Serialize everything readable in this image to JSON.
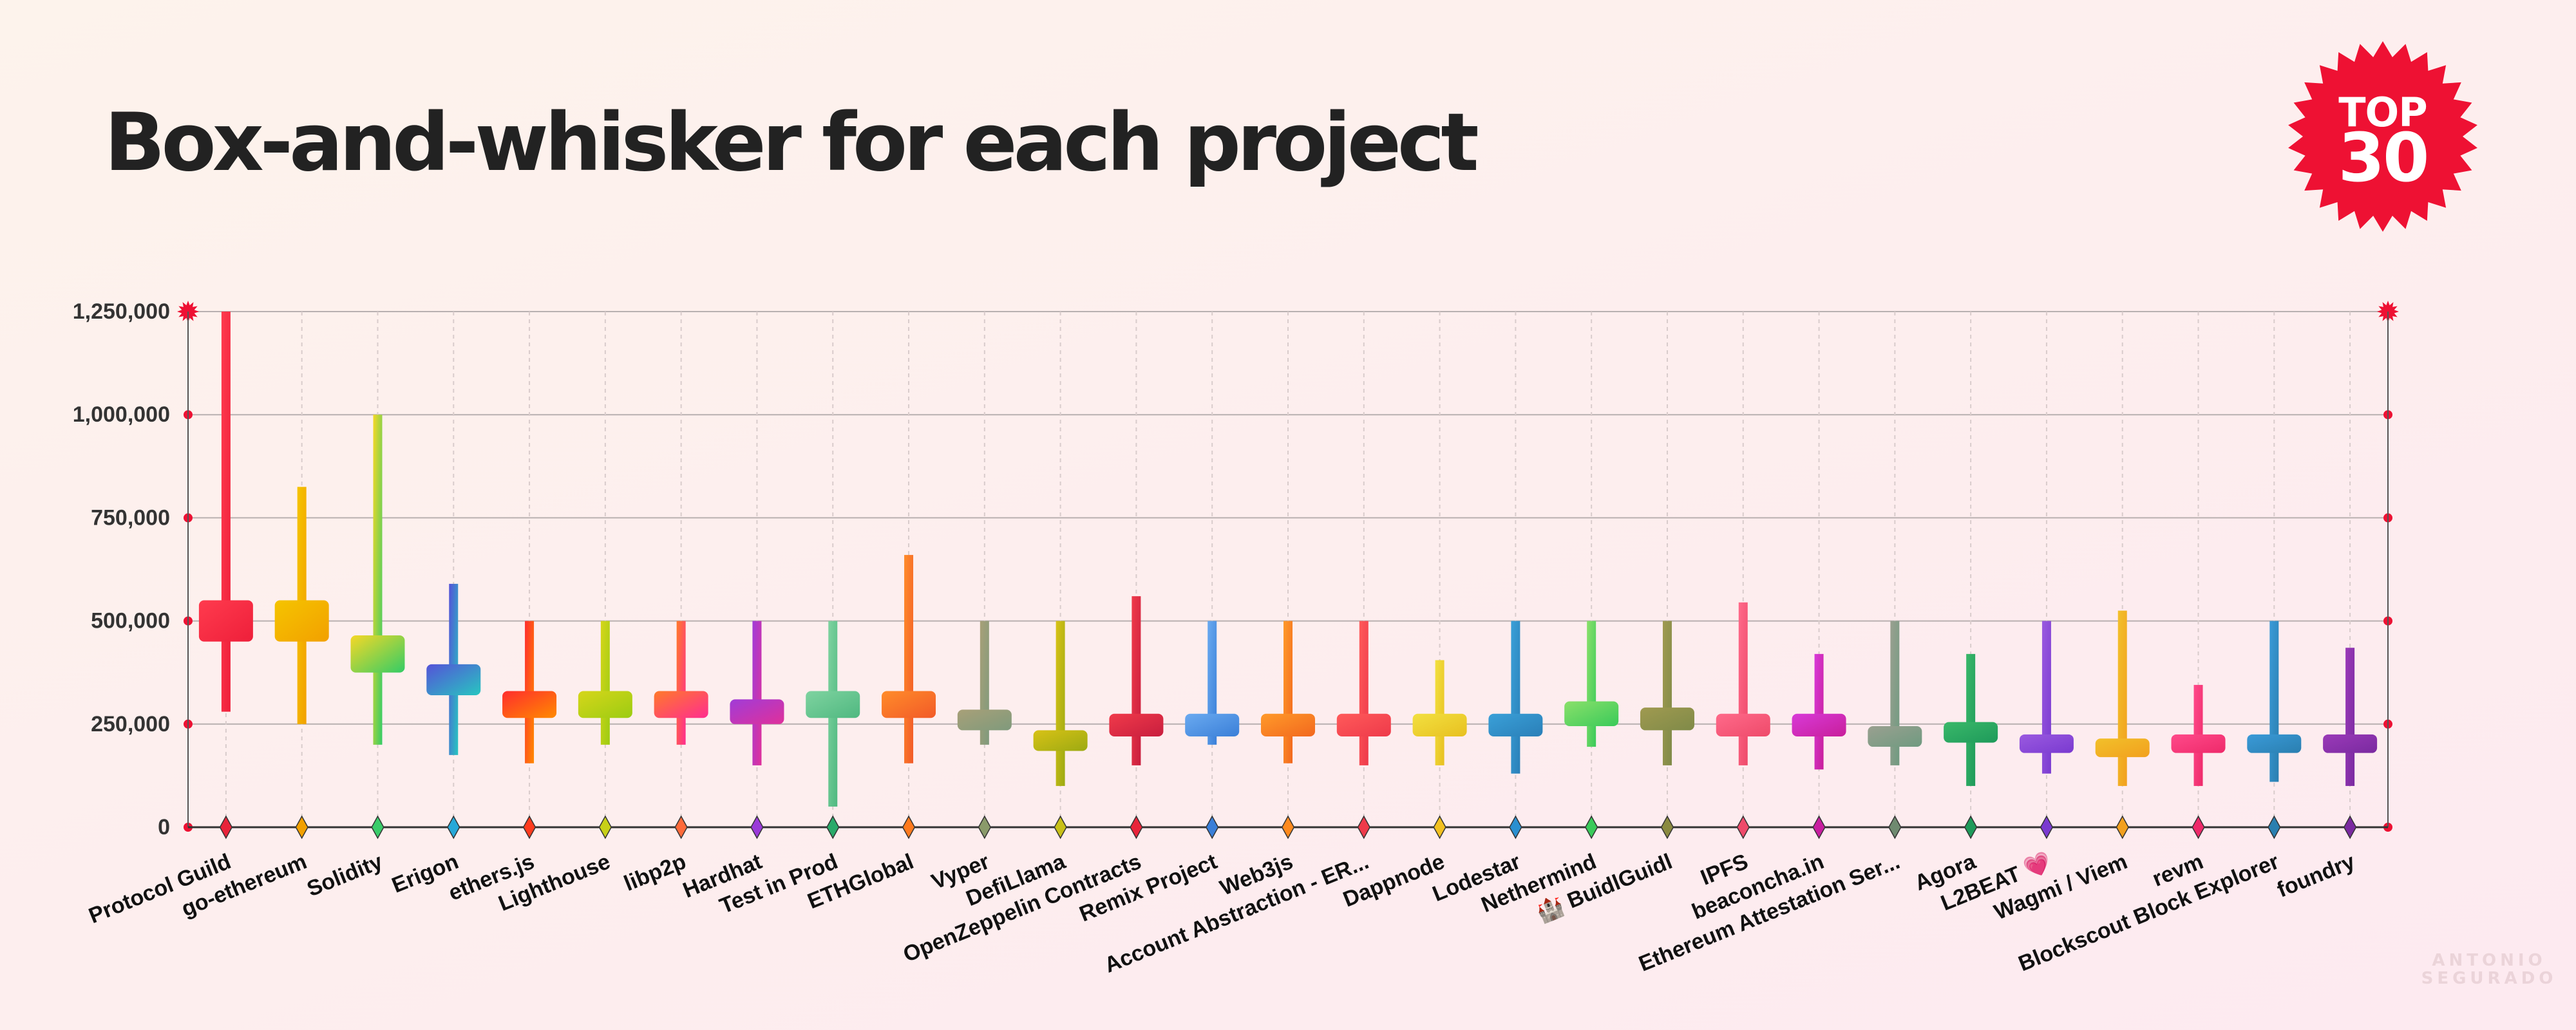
{
  "title": "Box-and-whisker for each project",
  "badge": {
    "line1": "TOP",
    "line2": "30",
    "color": "#ee1133"
  },
  "watermark": {
    "line1": "ANTONIO",
    "line2": "SEGURADO"
  },
  "chart_data": {
    "type": "box",
    "title": "Box-and-whisker for each project",
    "xlabel": "",
    "ylabel": "",
    "ylim": [
      0,
      1250000
    ],
    "yticks": [
      0,
      250000,
      500000,
      750000,
      1000000,
      1250000
    ],
    "ytick_labels": [
      "0",
      "250,000",
      "500,000",
      "750,000",
      "1,000,000",
      "1,250,000"
    ],
    "grid": true,
    "legend": "none",
    "categories": [
      "Protocol Guild",
      "go-ethereum",
      "Solidity",
      "Erigon",
      "ethers.js",
      "Lighthouse",
      "libp2p",
      "Hardhat",
      "Test in Prod",
      "ETHGlobal",
      "Vyper",
      "DefiLlama",
      "OpenZeppelin Contracts",
      "Remix Project",
      "Web3js",
      "Account Abstraction - ER...",
      "Dappnode",
      "Lodestar",
      "Nethermind",
      "🏰 BuidlGuidl",
      "IPFS",
      "beaconcha.in",
      "Ethereum Attestation Ser...",
      "Agora",
      "L2BEAT 💗",
      "Wagmi / Viem",
      "revm",
      "Blockscout Block Explorer",
      "foundry"
    ],
    "boxes": [
      {
        "min": 280000,
        "q1": 450000,
        "q3": 550000,
        "max": 1250000,
        "color1": "#ff3b4e",
        "color2": "#ee1f3a"
      },
      {
        "min": 250000,
        "q1": 450000,
        "q3": 550000,
        "max": 825000,
        "color1": "#f5c400",
        "color2": "#f2a000"
      },
      {
        "min": 200000,
        "q1": 375000,
        "q3": 465000,
        "max": 1000000,
        "color1": "#f6d826",
        "color2": "#33cc66"
      },
      {
        "min": 175000,
        "q1": 320000,
        "q3": 395000,
        "max": 590000,
        "color1": "#5552d8",
        "color2": "#27c6c0"
      },
      {
        "min": 155000,
        "q1": 265000,
        "q3": 330000,
        "max": 500000,
        "color1": "#ff2d2d",
        "color2": "#ff8a00"
      },
      {
        "min": 200000,
        "q1": 265000,
        "q3": 330000,
        "max": 500000,
        "color1": "#d6d61a",
        "color2": "#9ccc12"
      },
      {
        "min": 200000,
        "q1": 265000,
        "q3": 330000,
        "max": 500000,
        "color1": "#ff7a2a",
        "color2": "#ff2d8f"
      },
      {
        "min": 150000,
        "q1": 250000,
        "q3": 310000,
        "max": 500000,
        "color1": "#a03cd8",
        "color2": "#e0309a"
      },
      {
        "min": 50000,
        "q1": 265000,
        "q3": 330000,
        "max": 500000,
        "color1": "#7fd3a0",
        "color2": "#4fb880"
      },
      {
        "min": 155000,
        "q1": 265000,
        "q3": 330000,
        "max": 660000,
        "color1": "#ff8c2a",
        "color2": "#f25a28"
      },
      {
        "min": 200000,
        "q1": 235000,
        "q3": 285000,
        "max": 500000,
        "color1": "#a8a078",
        "color2": "#7f9a7c"
      },
      {
        "min": 100000,
        "q1": 185000,
        "q3": 235000,
        "max": 500000,
        "color1": "#d8c216",
        "color2": "#9caa12"
      },
      {
        "min": 150000,
        "q1": 220000,
        "q3": 275000,
        "max": 560000,
        "color1": "#f03a4a",
        "color2": "#c81e3e"
      },
      {
        "min": 200000,
        "q1": 220000,
        "q3": 275000,
        "max": 500000,
        "color1": "#6aaaf0",
        "color2": "#3a7fd8"
      },
      {
        "min": 155000,
        "q1": 220000,
        "q3": 275000,
        "max": 500000,
        "color1": "#ff9a2a",
        "color2": "#f2681e"
      },
      {
        "min": 150000,
        "q1": 220000,
        "q3": 275000,
        "max": 500000,
        "color1": "#ff5a5a",
        "color2": "#ee3a4a"
      },
      {
        "min": 150000,
        "q1": 220000,
        "q3": 275000,
        "max": 405000,
        "color1": "#f2e040",
        "color2": "#e8c020"
      },
      {
        "min": 130000,
        "q1": 220000,
        "q3": 275000,
        "max": 500000,
        "color1": "#3aa0d8",
        "color2": "#2a7fb8"
      },
      {
        "min": 195000,
        "q1": 245000,
        "q3": 305000,
        "max": 500000,
        "color1": "#8ae06a",
        "color2": "#3aca5a"
      },
      {
        "min": 150000,
        "q1": 235000,
        "q3": 290000,
        "max": 500000,
        "color1": "#a09a50",
        "color2": "#7f8a48"
      },
      {
        "min": 150000,
        "q1": 220000,
        "q3": 275000,
        "max": 545000,
        "color1": "#ff6a8a",
        "color2": "#ee4a6a"
      },
      {
        "min": 140000,
        "q1": 220000,
        "q3": 275000,
        "max": 420000,
        "color1": "#d83ad8",
        "color2": "#c81e9a"
      },
      {
        "min": 150000,
        "q1": 195000,
        "q3": 245000,
        "max": 500000,
        "color1": "#9aa090",
        "color2": "#6f9a80"
      },
      {
        "min": 100000,
        "q1": 205000,
        "q3": 255000,
        "max": 420000,
        "color1": "#3ab86a",
        "color2": "#1e9a5a"
      },
      {
        "min": 130000,
        "q1": 180000,
        "q3": 225000,
        "max": 500000,
        "color1": "#9a5ae0",
        "color2": "#7a3ad0"
      },
      {
        "min": 100000,
        "q1": 170000,
        "q3": 215000,
        "max": 525000,
        "color1": "#f2c02a",
        "color2": "#f2a01e"
      },
      {
        "min": 100000,
        "q1": 180000,
        "q3": 225000,
        "max": 345000,
        "color1": "#ff4a8a",
        "color2": "#ee2a6a"
      },
      {
        "min": 110000,
        "q1": 180000,
        "q3": 225000,
        "max": 500000,
        "color1": "#3a9ad8",
        "color2": "#2a7fb0"
      },
      {
        "min": 100000,
        "q1": 180000,
        "q3": 225000,
        "max": 435000,
        "color1": "#9a3ab8",
        "color2": "#7a2aa0"
      }
    ],
    "marker_colors": [
      "#e8243a",
      "#f2a000",
      "#3acc6a",
      "#27a8d8",
      "#ff3b1e",
      "#c8d018",
      "#ff6a3a",
      "#9a3ad8",
      "#2aaa6a",
      "#ff7a1e",
      "#8a9a6a",
      "#c8c018",
      "#e8243a",
      "#3a7fd8",
      "#ff8a1e",
      "#ee3a4a",
      "#f2c020",
      "#2a8fd0",
      "#3aca5a",
      "#8a8a40",
      "#ee4a6a",
      "#c81ea0",
      "#6f8a70",
      "#1e9a5a",
      "#7a3ad0",
      "#f2a01e",
      "#ee2a6a",
      "#2a7fb0",
      "#7a2aa0"
    ]
  }
}
